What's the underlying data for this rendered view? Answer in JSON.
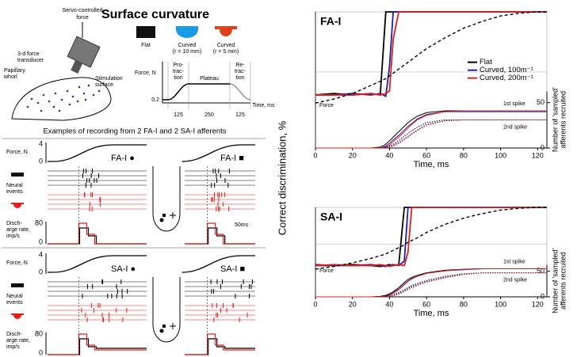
{
  "left_panel": {
    "title": "Surface curvature",
    "setup_labels": [
      "Servo-controlled",
      "force",
      "3-d force",
      "transducer",
      "Papillary",
      "whorl",
      "Stimulation",
      "surface"
    ],
    "surfaces": [
      "Flat",
      "Curved",
      "(r = 10 mm)",
      "Curved",
      "(r = 5 mm)"
    ],
    "profile": {
      "y_label": "Force, N",
      "y_tick": "0.2",
      "phases": [
        "Pro-",
        "trac-",
        "tion",
        "Plateau",
        "Re-",
        "trac-",
        "tion"
      ],
      "durations": [
        "125",
        "250",
        "125"
      ],
      "x_label": "Time, ms"
    },
    "examples_caption": "Examples of recording from 2 FA-I and 2 SA-I afferents",
    "recordings": [
      {
        "force_label": "Force, N",
        "force_ticks": [
          "4",
          "0"
        ],
        "units": [
          "FA-I ●",
          "FA-I ■"
        ],
        "events_label": [
          "Neural",
          "events"
        ],
        "rate_label": [
          "Disch-",
          "arge rate,",
          "imp/s"
        ],
        "rate_ticks": [
          "80",
          "0"
        ],
        "scale": "50ms"
      },
      {
        "force_label": "Force, N",
        "force_ticks": [
          "4",
          "0"
        ],
        "units": [
          "SA-I ●",
          "SA-I ■"
        ],
        "events_label": [
          "Neural",
          "events"
        ],
        "rate_label": [
          "Disch-",
          "arge rate,",
          "imp/s"
        ],
        "rate_ticks": [
          "80",
          "0"
        ]
      }
    ]
  },
  "shared_y_label": "Correct discrimination, %",
  "chart_data": [
    {
      "type": "line",
      "title": "FA-I",
      "x_label": "Time, ms",
      "y2_label": [
        "Number of 'sampled'",
        "afferents recruited"
      ],
      "x": [
        0,
        10,
        20,
        30,
        35,
        38,
        40,
        42,
        45,
        48,
        50,
        52,
        55,
        60,
        70,
        80,
        90,
        100,
        110,
        120,
        125
      ],
      "xlim": [
        0,
        125
      ],
      "xticks": [
        0,
        20,
        40,
        60,
        80,
        100,
        120
      ],
      "ylim": [
        0,
        100
      ],
      "y2lim": [
        0,
        150
      ],
      "y2ticks": [
        0,
        50
      ],
      "legend": "center right",
      "annotations": [
        "Force",
        "1st spike",
        "2nd spike"
      ],
      "series": [
        {
          "name": "Flat",
          "color": "#000000",
          "values": [
            39,
            40,
            39,
            40,
            39,
            100,
            100,
            100,
            100,
            100,
            100,
            100,
            100,
            100,
            100,
            100,
            100,
            100,
            100,
            100,
            100
          ]
        },
        {
          "name": "Curved, 100m⁻¹",
          "color": "#1f1fa8",
          "values": [
            39,
            39,
            40,
            39,
            40,
            38,
            60,
            100,
            100,
            100,
            100,
            100,
            100,
            100,
            100,
            100,
            100,
            100,
            100,
            100,
            100
          ]
        },
        {
          "name": "Curved, 200m⁻¹",
          "color": "#e0201c",
          "values": [
            39,
            39,
            39,
            40,
            39,
            40,
            42,
            80,
            100,
            100,
            100,
            100,
            100,
            100,
            100,
            100,
            100,
            100,
            100,
            100,
            100
          ]
        },
        {
          "color": "#000000",
          "style": "dashed",
          "values": [
            33,
            36,
            40,
            46,
            49,
            51,
            53,
            55,
            58,
            61,
            63,
            65,
            68,
            73,
            81,
            88,
            93,
            97,
            99,
            100,
            100
          ]
        },
        {
          "color": "#000000",
          "axis": "y2",
          "values": [
            0,
            0,
            0,
            0,
            1,
            4,
            8,
            12,
            18,
            24,
            28,
            31,
            35,
            39,
            41,
            41,
            41,
            41,
            41,
            41,
            41
          ]
        },
        {
          "color": "#1f1fa8",
          "axis": "y2",
          "values": [
            0,
            0,
            0,
            0,
            0,
            2,
            5,
            9,
            14,
            20,
            24,
            27,
            32,
            37,
            40,
            40,
            40,
            40,
            40,
            40,
            40
          ]
        },
        {
          "color": "#e0201c",
          "axis": "y2",
          "values": [
            0,
            0,
            0,
            0,
            0,
            1,
            3,
            7,
            12,
            18,
            22,
            26,
            31,
            36,
            40,
            41,
            41,
            41,
            41,
            41,
            41
          ]
        },
        {
          "color": "#000000",
          "axis": "y2",
          "style": "dotted",
          "values": [
            0,
            0,
            0,
            0,
            0,
            1,
            2,
            4,
            8,
            13,
            16,
            19,
            23,
            28,
            31,
            31,
            31,
            31,
            31,
            31,
            31
          ]
        },
        {
          "color": "#1f1fa8",
          "axis": "y2",
          "style": "dotted",
          "values": [
            0,
            0,
            0,
            0,
            0,
            0,
            1,
            3,
            6,
            10,
            13,
            16,
            20,
            26,
            30,
            31,
            31,
            31,
            31,
            31,
            31
          ]
        },
        {
          "color": "#e0201c",
          "axis": "y2",
          "style": "dotted",
          "values": [
            0,
            0,
            0,
            0,
            0,
            0,
            1,
            2,
            5,
            9,
            12,
            15,
            19,
            25,
            30,
            31,
            31,
            31,
            31,
            31,
            31
          ]
        }
      ]
    },
    {
      "type": "line",
      "title": "SA-I",
      "x_label": "Time, ms",
      "y2_label": [
        "Number of 'sampled'",
        "afferents recruited"
      ],
      "x": [
        0,
        10,
        20,
        30,
        35,
        38,
        40,
        42,
        45,
        48,
        50,
        52,
        55,
        60,
        70,
        80,
        90,
        100,
        110,
        120,
        125
      ],
      "xlim": [
        0,
        125
      ],
      "xticks": [
        0,
        20,
        40,
        60,
        80,
        100,
        120
      ],
      "ylim": [
        0,
        100
      ],
      "y2lim": [
        0,
        175
      ],
      "y2ticks": [
        0,
        50
      ],
      "annotations": [
        "Force",
        "1st spike",
        "2nd spike"
      ],
      "series": [
        {
          "color": "#000000",
          "values": [
            35,
            35,
            36,
            35,
            34,
            35,
            36,
            35,
            36,
            100,
            100,
            100,
            100,
            100,
            100,
            100,
            100,
            100,
            100,
            100,
            100
          ]
        },
        {
          "color": "#1f1fa8",
          "values": [
            36,
            35,
            35,
            36,
            35,
            34,
            35,
            36,
            35,
            40,
            100,
            100,
            100,
            100,
            100,
            100,
            100,
            100,
            100,
            100,
            100
          ]
        },
        {
          "color": "#e0201c",
          "values": [
            35,
            36,
            35,
            35,
            36,
            35,
            34,
            35,
            36,
            35,
            50,
            100,
            100,
            100,
            100,
            100,
            100,
            100,
            100,
            100,
            100
          ]
        },
        {
          "color": "#000000",
          "style": "dashed",
          "values": [
            31,
            34,
            38,
            43,
            46,
            48,
            50,
            52,
            55,
            58,
            61,
            63,
            66,
            72,
            81,
            88,
            93,
            97,
            99,
            100,
            100
          ]
        },
        {
          "color": "#000000",
          "axis": "y2",
          "values": [
            0,
            0,
            0,
            0,
            1,
            3,
            6,
            10,
            18,
            28,
            34,
            38,
            42,
            47,
            52,
            54,
            55,
            55,
            55,
            55,
            55
          ]
        },
        {
          "color": "#1f1fa8",
          "axis": "y2",
          "values": [
            0,
            0,
            0,
            0,
            0,
            2,
            4,
            8,
            15,
            25,
            31,
            36,
            40,
            46,
            51,
            53,
            55,
            55,
            55,
            55,
            55
          ]
        },
        {
          "color": "#e0201c",
          "axis": "y2",
          "values": [
            0,
            0,
            0,
            0,
            0,
            1,
            3,
            7,
            14,
            24,
            30,
            35,
            40,
            46,
            51,
            54,
            55,
            55,
            55,
            55,
            55
          ]
        },
        {
          "color": "#000000",
          "axis": "y2",
          "style": "dotted",
          "values": [
            0,
            0,
            0,
            0,
            0,
            1,
            2,
            4,
            8,
            14,
            18,
            22,
            26,
            32,
            40,
            45,
            47,
            47,
            47,
            47,
            47
          ]
        },
        {
          "color": "#1f1fa8",
          "axis": "y2",
          "style": "dotted",
          "values": [
            0,
            0,
            0,
            0,
            0,
            0,
            1,
            3,
            6,
            12,
            16,
            20,
            24,
            30,
            38,
            44,
            47,
            47,
            47,
            47,
            47
          ]
        },
        {
          "color": "#e0201c",
          "axis": "y2",
          "style": "dotted",
          "values": [
            0,
            0,
            0,
            0,
            0,
            0,
            1,
            2,
            5,
            10,
            14,
            18,
            22,
            29,
            37,
            44,
            47,
            47,
            47,
            47,
            47
          ]
        }
      ]
    }
  ]
}
